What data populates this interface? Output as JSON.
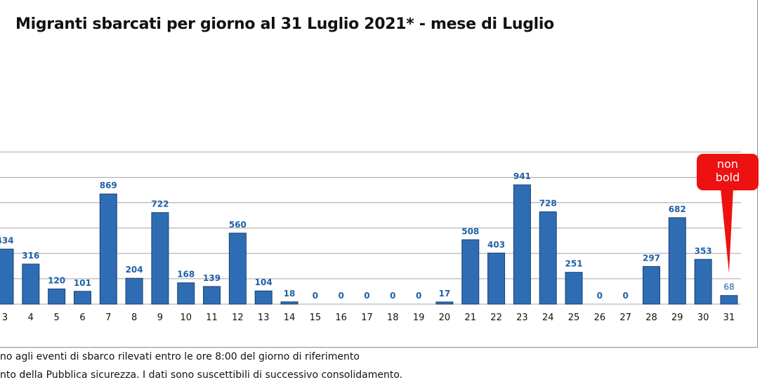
{
  "chart_data": {
    "type": "bar",
    "title": "Migranti sbarcati per giorno al 31 Luglio 2021* - mese di Luglio",
    "categories": [
      "3",
      "4",
      "5",
      "6",
      "7",
      "8",
      "9",
      "10",
      "11",
      "12",
      "13",
      "14",
      "15",
      "16",
      "17",
      "18",
      "19",
      "20",
      "21",
      "22",
      "23",
      "24",
      "25",
      "26",
      "27",
      "28",
      "29",
      "30",
      "31"
    ],
    "values": [
      434,
      316,
      120,
      101,
      869,
      204,
      722,
      168,
      139,
      560,
      104,
      18,
      0,
      0,
      0,
      0,
      0,
      17,
      508,
      403,
      941,
      728,
      251,
      0,
      0,
      297,
      682,
      353,
      68
    ],
    "value_labels": [
      "434",
      "316",
      "120",
      "101",
      "869",
      "204",
      "722",
      "168",
      "139",
      "560",
      "104",
      "18",
      "0",
      "0",
      "0",
      "0",
      "0",
      "17",
      "508",
      "403",
      "941",
      "728",
      "251",
      "0",
      "0",
      "297",
      "682",
      "353",
      "68"
    ],
    "ylim": [
      0,
      1200
    ],
    "grid": true,
    "colors": {
      "bar": "#2e6db4",
      "bar_edge": "#1b3f73",
      "label": "#1f5fa8",
      "grid": "#a6a6a6",
      "callout": "#ee1111"
    },
    "annotation": {
      "text_lines": [
        "non",
        "bold"
      ],
      "target_category": "31"
    }
  },
  "footnotes": [
    "no agli eventi di sbarco rilevati entro le ore 8:00 del giorno di riferimento",
    "nto della Pubblica sicurezza. I dati sono suscettibili di successivo consolidamento."
  ]
}
